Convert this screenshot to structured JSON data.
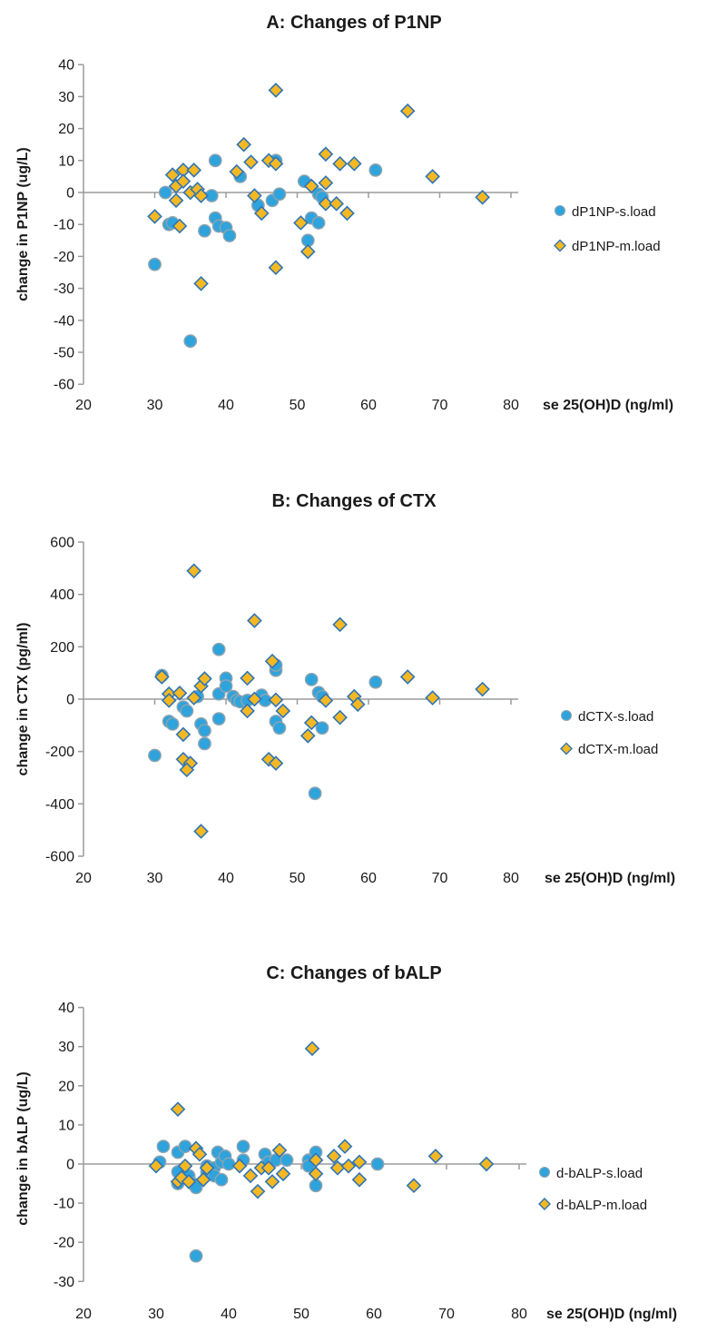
{
  "styles": {
    "background": "#ffffff",
    "circle_fill": "#2FA3DC",
    "circle_stroke": "#8FA3AE",
    "diamond_fill": "#F5B822",
    "diamond_stroke": "#2E75B6",
    "axis_color": "#9B9B9B",
    "text_color": "#1A1A1A"
  },
  "chart_data": [
    {
      "type": "scatter",
      "id": "A",
      "title": "A: Changes of P1NP",
      "xlabel": "se 25(OH)D (ng/ml)",
      "ylabel": "change in P1NP (ug/L)",
      "xlim": [
        20,
        80
      ],
      "ylim": [
        -60,
        40
      ],
      "xticks": [
        20,
        30,
        40,
        50,
        60,
        70,
        80
      ],
      "yticks": [
        40,
        30,
        20,
        10,
        0,
        -10,
        -20,
        -30,
        -40,
        -50,
        -60
      ],
      "grid": false,
      "legend_position": "right",
      "series": [
        {
          "name": "dP1NP-s.load",
          "marker": "circle",
          "points": [
            [
              30,
              -22.5
            ],
            [
              31.5,
              0
            ],
            [
              32,
              -10
            ],
            [
              32.5,
              -9.5
            ],
            [
              35,
              -46.5
            ],
            [
              37,
              -12
            ],
            [
              38,
              -1
            ],
            [
              38.5,
              10
            ],
            [
              38.5,
              -8
            ],
            [
              39,
              -10.5
            ],
            [
              40,
              -11
            ],
            [
              40.5,
              -13.5
            ],
            [
              42,
              5
            ],
            [
              44.5,
              -4
            ],
            [
              46.5,
              -2.5
            ],
            [
              47,
              10
            ],
            [
              47.5,
              -0.5
            ],
            [
              51,
              3.5
            ],
            [
              51.5,
              -15
            ],
            [
              52,
              -8
            ],
            [
              53,
              -9.5
            ],
            [
              53,
              -0.5
            ],
            [
              53.5,
              -1.5
            ],
            [
              61,
              7
            ]
          ]
        },
        {
          "name": "dP1NP-m.load",
          "marker": "diamond",
          "points": [
            [
              30,
              -7.5
            ],
            [
              32.5,
              5.5
            ],
            [
              33,
              2
            ],
            [
              33,
              -2.5
            ],
            [
              33.5,
              -10.5
            ],
            [
              34,
              7
            ],
            [
              34,
              3.5
            ],
            [
              35,
              0
            ],
            [
              35.5,
              7
            ],
            [
              36,
              1
            ],
            [
              36.5,
              -1
            ],
            [
              36.5,
              -28.5
            ],
            [
              41.5,
              6.5
            ],
            [
              42.5,
              15
            ],
            [
              43.5,
              9.5
            ],
            [
              44,
              -1
            ],
            [
              45,
              -6.5
            ],
            [
              46,
              10
            ],
            [
              47,
              32
            ],
            [
              47,
              9
            ],
            [
              47,
              -23.5
            ],
            [
              50.5,
              -9.5
            ],
            [
              51.5,
              -18.5
            ],
            [
              52,
              2
            ],
            [
              54,
              12
            ],
            [
              54,
              3
            ],
            [
              54,
              -3.5
            ],
            [
              55.5,
              -3.5
            ],
            [
              56,
              9
            ],
            [
              57,
              -6.5
            ],
            [
              58,
              9
            ],
            [
              65.5,
              25.5
            ],
            [
              69,
              5
            ],
            [
              76,
              -1.5
            ]
          ]
        }
      ]
    },
    {
      "type": "scatter",
      "id": "B",
      "title": "B: Changes of CTX",
      "xlabel": "se 25(OH)D (ng/ml)",
      "ylabel": "change in CTX (pg/ml)",
      "xlim": [
        20,
        80
      ],
      "ylim": [
        -600,
        600
      ],
      "xticks": [
        20,
        30,
        40,
        50,
        60,
        70,
        80
      ],
      "yticks": [
        600,
        400,
        200,
        0,
        -200,
        -400,
        -600
      ],
      "grid": false,
      "legend_position": "right",
      "series": [
        {
          "name": "dCTX-s.load",
          "marker": "circle",
          "points": [
            [
              30,
              -215
            ],
            [
              31,
              90
            ],
            [
              32,
              -85
            ],
            [
              32.5,
              -95
            ],
            [
              34,
              -30
            ],
            [
              34.5,
              -45
            ],
            [
              36,
              10
            ],
            [
              36.5,
              -95
            ],
            [
              37,
              -120
            ],
            [
              37,
              -170
            ],
            [
              39,
              190
            ],
            [
              39,
              20
            ],
            [
              39,
              -75
            ],
            [
              40,
              80
            ],
            [
              40,
              50
            ],
            [
              41,
              10
            ],
            [
              41.5,
              -5
            ],
            [
              42,
              -10
            ],
            [
              43,
              -5
            ],
            [
              45,
              15
            ],
            [
              45.5,
              -5
            ],
            [
              47,
              110
            ],
            [
              47,
              130
            ],
            [
              47,
              -85
            ],
            [
              47.5,
              -110
            ],
            [
              52,
              75
            ],
            [
              53,
              25
            ],
            [
              53.5,
              10
            ],
            [
              53.5,
              -110
            ],
            [
              52.5,
              -360
            ],
            [
              61,
              65
            ]
          ]
        },
        {
          "name": "dCTX-m.load",
          "marker": "diamond",
          "points": [
            [
              31,
              85
            ],
            [
              32,
              20
            ],
            [
              32,
              -5
            ],
            [
              33.5,
              23
            ],
            [
              34,
              -135
            ],
            [
              34,
              -230
            ],
            [
              35,
              -245
            ],
            [
              34.5,
              -270
            ],
            [
              35.5,
              5
            ],
            [
              35.5,
              490
            ],
            [
              36.5,
              50
            ],
            [
              36.5,
              -505
            ],
            [
              37,
              78
            ],
            [
              43,
              80
            ],
            [
              43,
              -45
            ],
            [
              44,
              0
            ],
            [
              44,
              300
            ],
            [
              46,
              -230
            ],
            [
              47,
              -245
            ],
            [
              46.5,
              145
            ],
            [
              47,
              -3
            ],
            [
              48,
              -45
            ],
            [
              51.5,
              -140
            ],
            [
              52,
              -90
            ],
            [
              54,
              -5
            ],
            [
              56,
              -70
            ],
            [
              56,
              285
            ],
            [
              58,
              10
            ],
            [
              58.5,
              -20
            ],
            [
              65.5,
              85
            ],
            [
              69,
              5
            ],
            [
              76,
              38
            ]
          ]
        }
      ]
    },
    {
      "type": "scatter",
      "id": "C",
      "title": "C: Changes of bALP",
      "xlabel": "se 25(OH)D (ng/ml)",
      "ylabel": "change in bALP (ug/L)",
      "xlim": [
        20,
        80
      ],
      "ylim": [
        -30,
        40
      ],
      "xticks": [
        20,
        30,
        40,
        50,
        60,
        70,
        80
      ],
      "yticks": [
        40,
        30,
        20,
        10,
        0,
        -10,
        -20,
        -30
      ],
      "grid": false,
      "legend_position": "right",
      "series": [
        {
          "name": "d-bALP-s.load",
          "marker": "circle",
          "points": [
            [
              30.5,
              0.5
            ],
            [
              31,
              4.5
            ],
            [
              33,
              3
            ],
            [
              33,
              -2
            ],
            [
              33,
              -5
            ],
            [
              34,
              4.5
            ],
            [
              34.5,
              -3
            ],
            [
              35,
              -5
            ],
            [
              35.5,
              -6
            ],
            [
              35.5,
              -23.5
            ],
            [
              37,
              -2
            ],
            [
              37,
              -0.5
            ],
            [
              38,
              -1
            ],
            [
              38,
              -3
            ],
            [
              38.5,
              3
            ],
            [
              39,
              0.5
            ],
            [
              39,
              -4
            ],
            [
              39.5,
              2
            ],
            [
              40,
              0
            ],
            [
              42,
              4.5
            ],
            [
              42,
              1
            ],
            [
              45,
              2.5
            ],
            [
              45.5,
              0.5
            ],
            [
              46.5,
              1
            ],
            [
              48,
              1
            ],
            [
              51,
              1
            ],
            [
              51,
              -0.5
            ],
            [
              52,
              3
            ],
            [
              52,
              -5.5
            ],
            [
              60.5,
              0
            ]
          ]
        },
        {
          "name": "d-bALP-m.load",
          "marker": "diamond",
          "points": [
            [
              30,
              -0.5
            ],
            [
              33,
              14
            ],
            [
              33,
              -4.5
            ],
            [
              33.5,
              -3.5
            ],
            [
              34,
              -0.5
            ],
            [
              34.5,
              -4.5
            ],
            [
              35.5,
              4
            ],
            [
              36,
              2.5
            ],
            [
              36.5,
              -4
            ],
            [
              37,
              -1
            ],
            [
              41.5,
              -0.5
            ],
            [
              43,
              -3
            ],
            [
              44,
              -7
            ],
            [
              44.5,
              -1
            ],
            [
              45.5,
              -1
            ],
            [
              46,
              -4.5
            ],
            [
              47,
              3.5
            ],
            [
              47.5,
              -2.5
            ],
            [
              51.5,
              29.5
            ],
            [
              52,
              1
            ],
            [
              52,
              -2.5
            ],
            [
              54.5,
              2
            ],
            [
              55,
              -1
            ],
            [
              56,
              4.5
            ],
            [
              56.5,
              -0.5
            ],
            [
              58,
              0.5
            ],
            [
              58,
              -4
            ],
            [
              65.5,
              -5.5
            ],
            [
              68.5,
              2
            ],
            [
              75.5,
              0
            ]
          ]
        }
      ]
    }
  ]
}
